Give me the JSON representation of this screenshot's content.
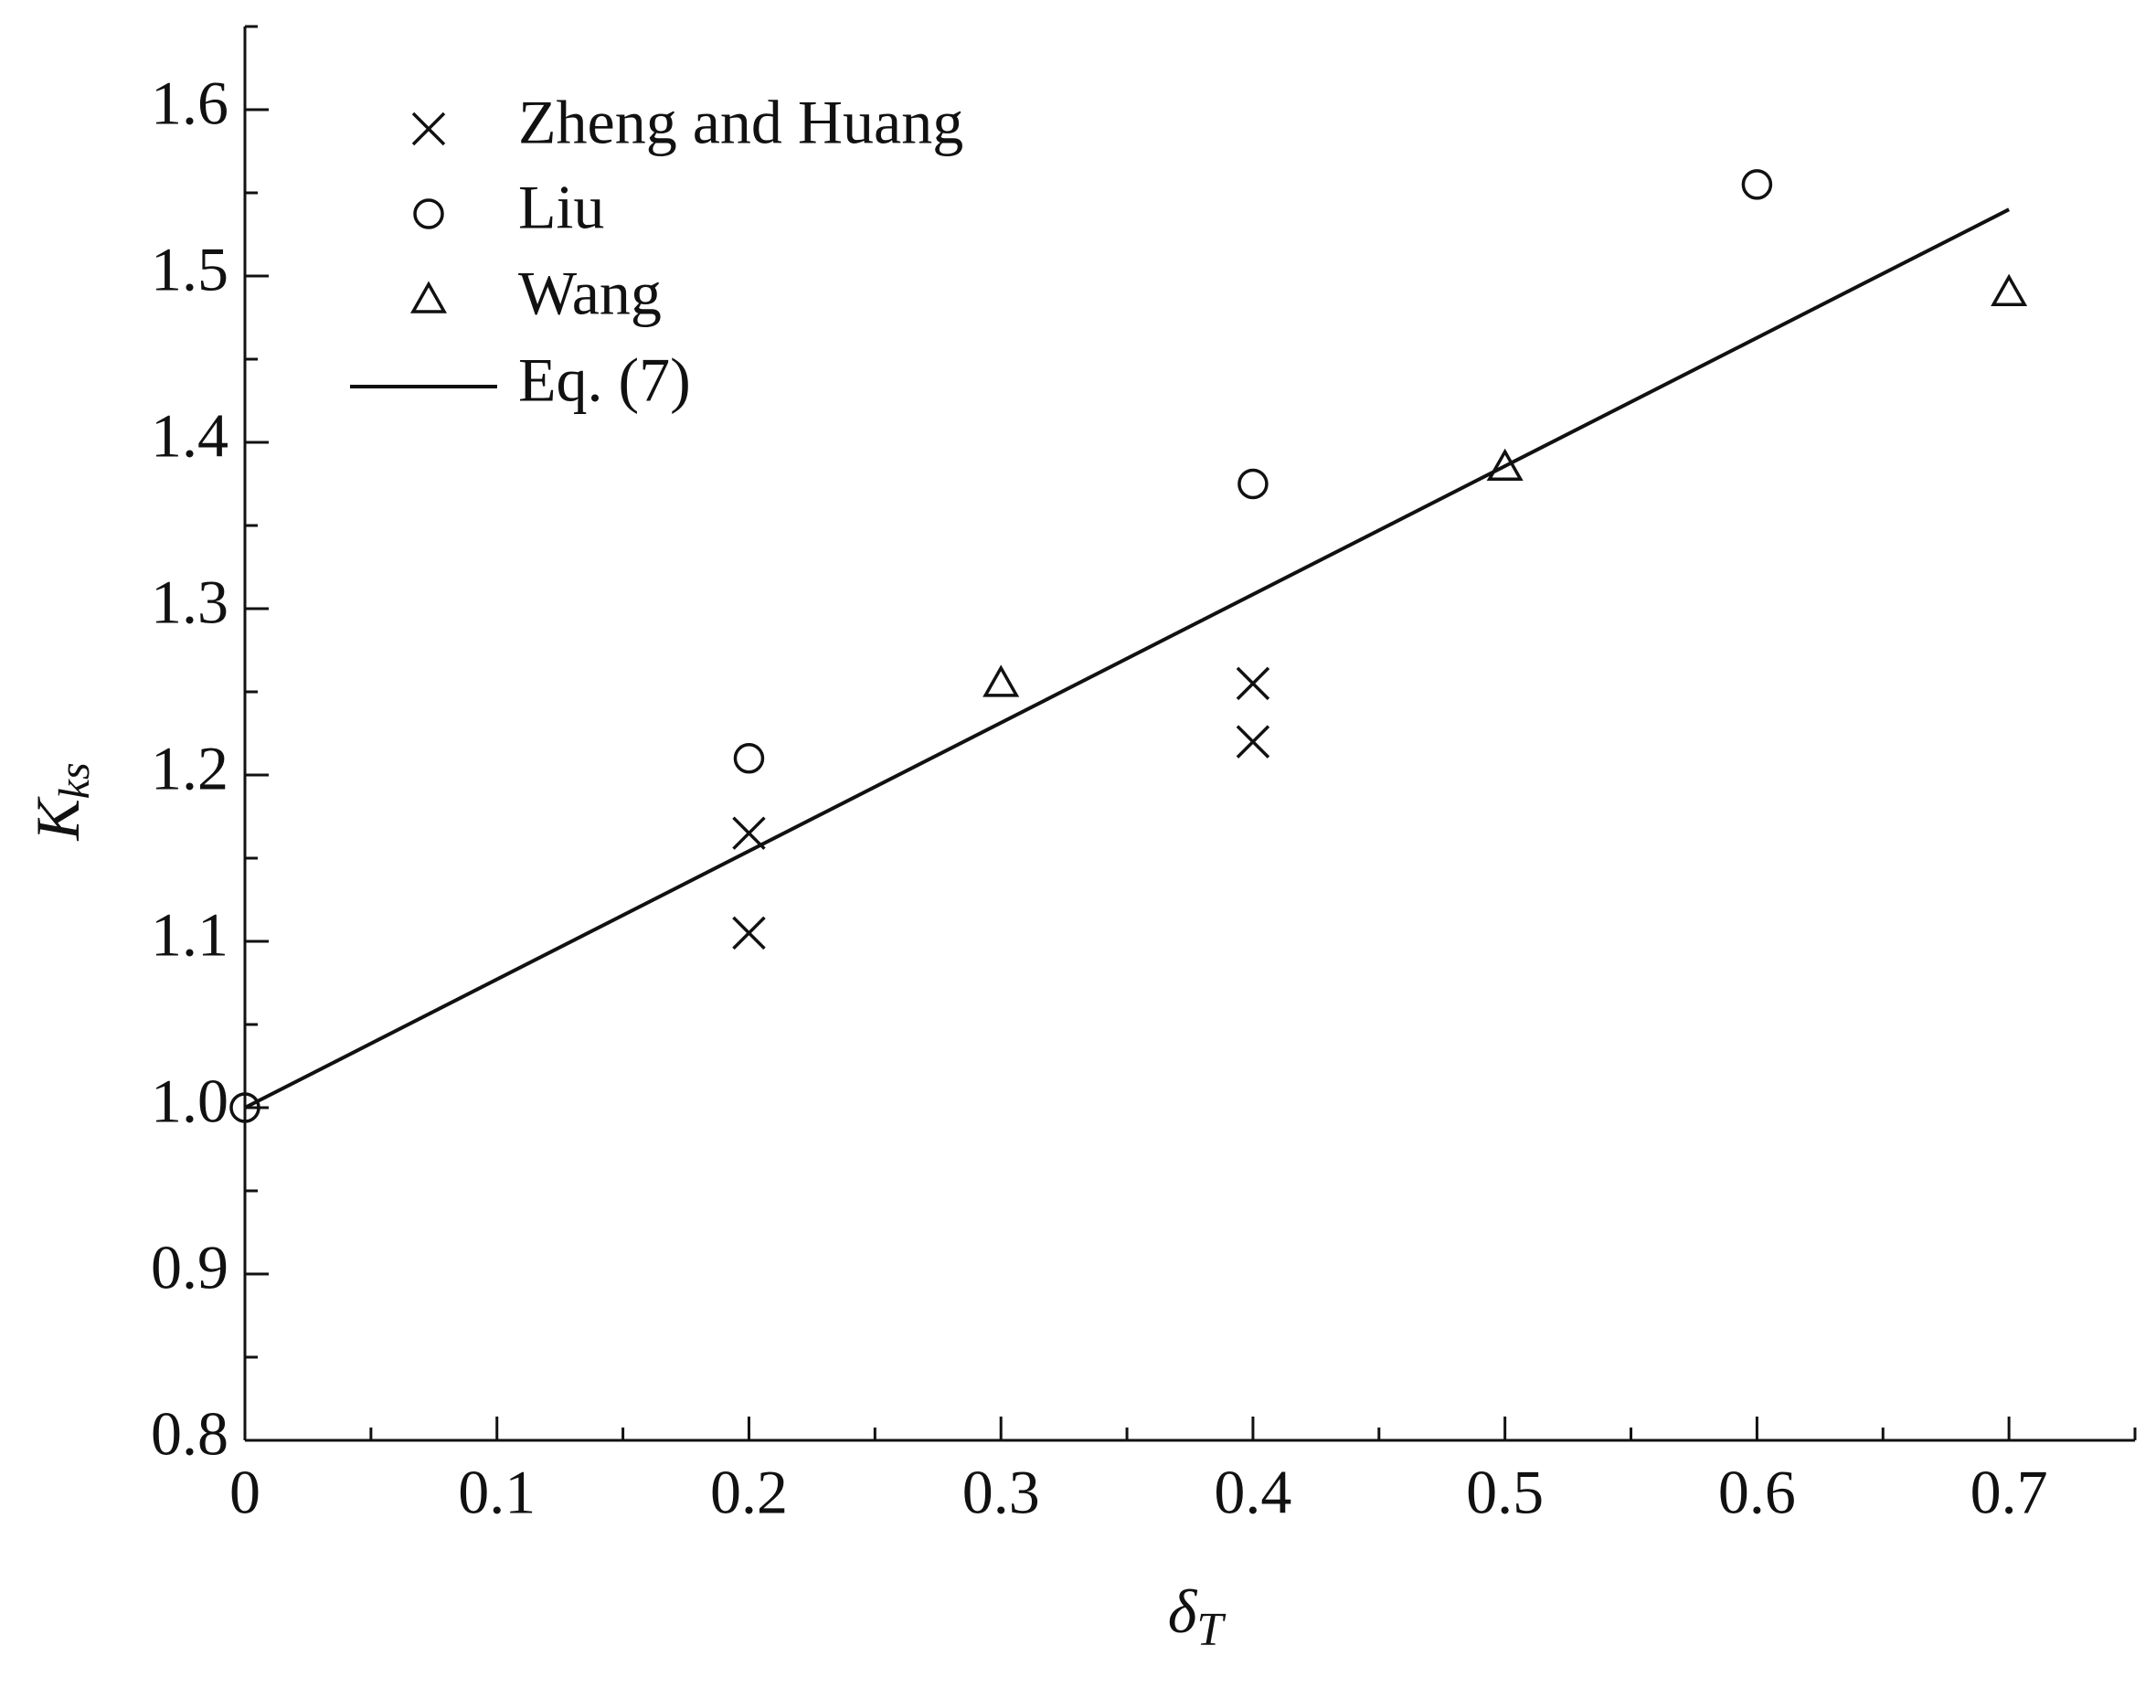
{
  "chart_data": {
    "type": "scatter",
    "xlabel": "δ",
    "xlabel_sub": "T",
    "ylabel": "K",
    "ylabel_sub": "ks",
    "xlim": [
      0,
      0.75
    ],
    "ylim": [
      0.8,
      1.65
    ],
    "xticks": [
      0,
      0.1,
      0.2,
      0.3,
      0.4,
      0.5,
      0.6,
      0.7
    ],
    "xminorticks": [
      0.05,
      0.15,
      0.25,
      0.35,
      0.45,
      0.55,
      0.65,
      0.75
    ],
    "yticks": [
      0.8,
      0.9,
      {
        "value": 1,
        "label": "1.0"
      },
      1.1,
      1.2,
      1.3,
      1.4,
      1.5,
      1.6
    ],
    "yminorticks": [
      0.85,
      0.95,
      1.05,
      1.15,
      1.25,
      1.35,
      1.45,
      1.55,
      1.65
    ],
    "legend": "upper left",
    "series": [
      {
        "name": "Zheng and Huang",
        "marker": "x",
        "color": "#111111",
        "x": [
          0.2,
          0.2,
          0.4,
          0.4
        ],
        "values": [
          1.165,
          1.105,
          1.255,
          1.22
        ]
      },
      {
        "name": "Liu",
        "marker": "circle",
        "color": "#111111",
        "x": [
          0,
          0.2,
          0.4,
          0.6
        ],
        "values": [
          1.0,
          1.21,
          1.375,
          1.555
        ]
      },
      {
        "name": "Wang",
        "marker": "triangle",
        "color": "#111111",
        "x": [
          0.3,
          0.5,
          0.7
        ],
        "values": [
          1.255,
          1.385,
          1.49
        ]
      },
      {
        "name": "Eq. (7)",
        "marker": "line",
        "color": "#111111",
        "x": [
          0,
          0.7
        ],
        "values": [
          1.0,
          1.54
        ]
      }
    ]
  }
}
